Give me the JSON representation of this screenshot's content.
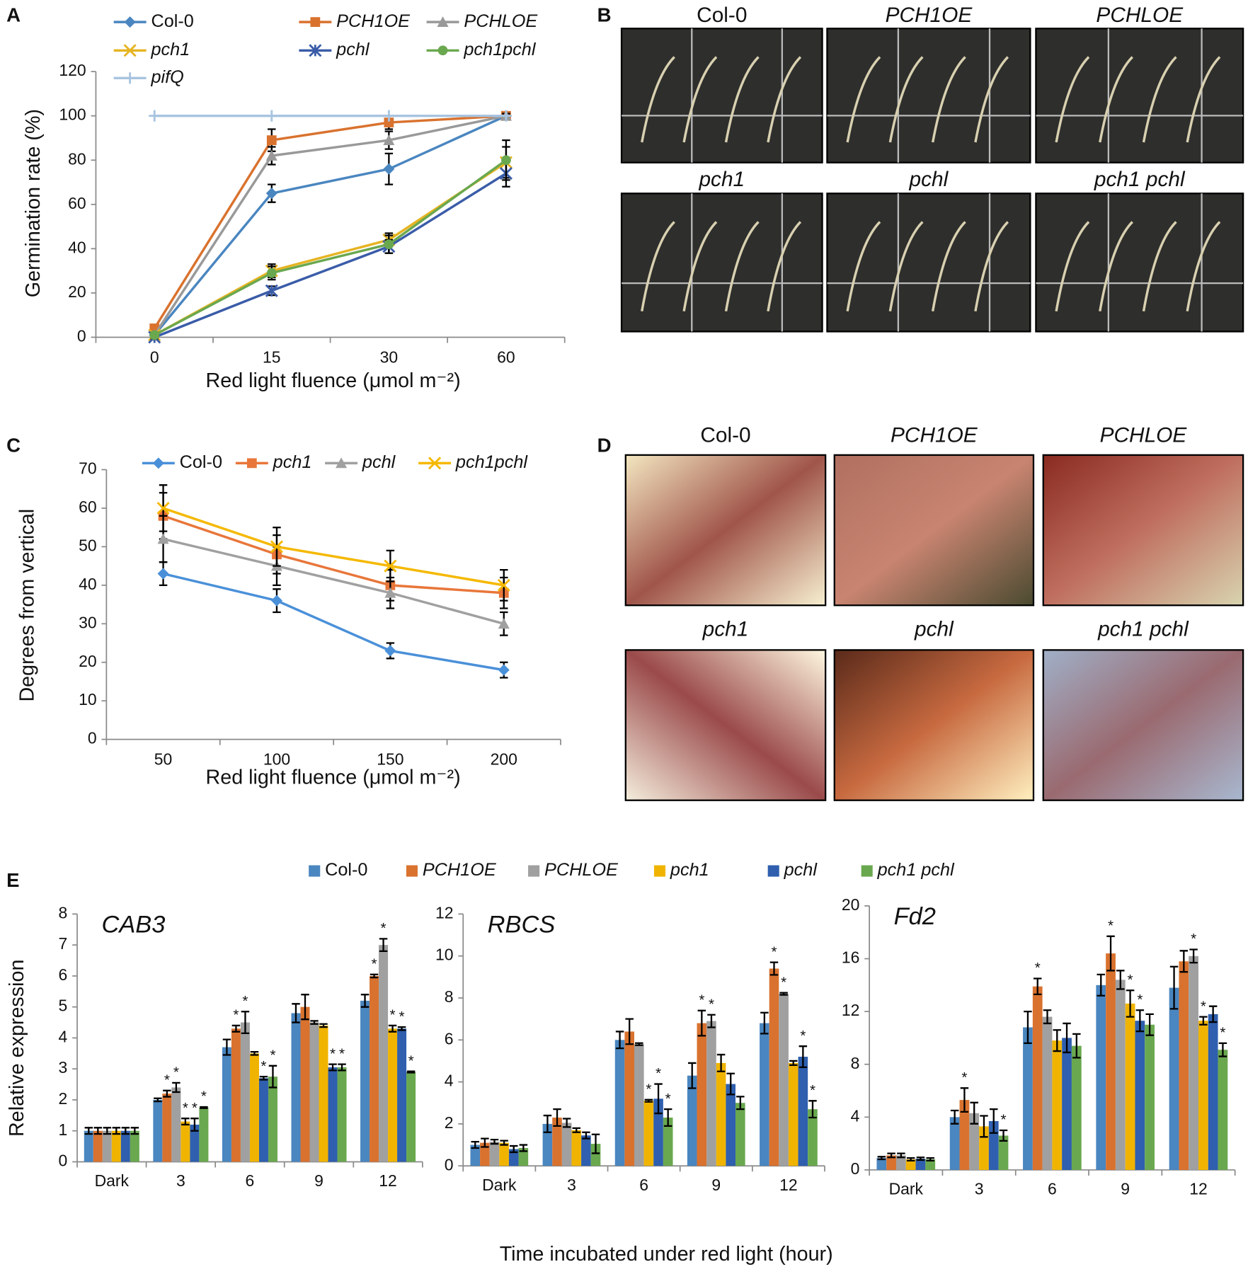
{
  "chart_data": [
    {
      "panel": "A",
      "type": "line",
      "xlabel": "Red light fluence (μmol m⁻²)",
      "ylabel": "Germination rate (%)",
      "categories": [
        "0",
        "15",
        "30",
        "60"
      ],
      "ylim": [
        0,
        120
      ],
      "yticks": [
        0,
        20,
        40,
        60,
        80,
        100,
        120
      ],
      "series": [
        {
          "name": "Col-0",
          "color": "#4a86c0",
          "marker": "diamond",
          "italic": false,
          "values": [
            1,
            65,
            76,
            100
          ],
          "errors": [
            1,
            4,
            7,
            1
          ]
        },
        {
          "name": "PCH1OE",
          "color": "#d9722e",
          "marker": "square",
          "italic": true,
          "values": [
            4,
            89,
            97,
            100
          ],
          "errors": [
            1,
            5,
            3,
            1
          ]
        },
        {
          "name": "PCHLOE",
          "color": "#999999",
          "marker": "triangle",
          "italic": true,
          "values": [
            1,
            82,
            89,
            100
          ],
          "errors": [
            1,
            4,
            4,
            1
          ]
        },
        {
          "name": "pch1",
          "color": "#e6b422",
          "marker": "x",
          "italic": true,
          "values": [
            1,
            30,
            44,
            79
          ],
          "errors": [
            1,
            3,
            3,
            7
          ]
        },
        {
          "name": "pchl",
          "color": "#3a5ca8",
          "marker": "star",
          "italic": true,
          "values": [
            0,
            21,
            41,
            74
          ],
          "errors": [
            1,
            2,
            3,
            6
          ]
        },
        {
          "name": "pch1pchl",
          "color": "#6aa84f",
          "marker": "circle",
          "italic": true,
          "values": [
            1,
            29,
            42,
            80
          ],
          "errors": [
            1,
            3,
            4,
            9
          ]
        },
        {
          "name": "pifQ",
          "color": "#a8c4e0",
          "marker": "plus",
          "italic": true,
          "values": [
            100,
            100,
            100,
            100
          ]
        }
      ]
    },
    {
      "panel": "C",
      "type": "line",
      "xlabel": "Red light fluence (μmol m⁻²)",
      "ylabel": "Degrees from vertical",
      "categories": [
        "50",
        "100",
        "150",
        "200"
      ],
      "ylim": [
        0,
        70
      ],
      "yticks": [
        0,
        10,
        20,
        30,
        40,
        50,
        60,
        70
      ],
      "series": [
        {
          "name": "Col-0",
          "color": "#4a90d9",
          "marker": "diamond",
          "italic": false,
          "values": [
            43,
            36,
            23,
            18
          ],
          "errors": [
            3,
            3,
            2,
            2
          ]
        },
        {
          "name": "pch1",
          "color": "#e8763a",
          "marker": "square",
          "italic": true,
          "values": [
            58,
            48,
            40,
            38
          ],
          "errors": [
            6,
            5,
            4,
            4
          ]
        },
        {
          "name": "pchl",
          "color": "#a0a0a0",
          "marker": "triangle",
          "italic": true,
          "values": [
            52,
            45,
            38,
            30
          ],
          "errors": [
            6,
            5,
            4,
            3
          ]
        },
        {
          "name": "pch1pchl",
          "color": "#f5b800",
          "marker": "x",
          "italic": true,
          "values": [
            60,
            50,
            45,
            40
          ],
          "errors": [
            6,
            5,
            4,
            4
          ]
        }
      ]
    },
    {
      "panel": "E",
      "type": "bar",
      "xlabel": "Time incubated under red light (hour)",
      "ylabel": "Relative expression",
      "categories": [
        "Dark",
        "3",
        "6",
        "9",
        "12"
      ],
      "series": [
        {
          "name": "Col-0",
          "color": "#4a86c0",
          "italic": false
        },
        {
          "name": "PCH1OE",
          "color": "#d9722e",
          "italic": true
        },
        {
          "name": "PCHLOE",
          "color": "#a0a0a0",
          "italic": true
        },
        {
          "name": "pch1",
          "color": "#f0b400",
          "italic": true
        },
        {
          "name": "pchl",
          "color": "#2f5fae",
          "italic": true
        },
        {
          "name": "pch1 pchl",
          "color": "#6aa84f",
          "italic": true
        }
      ],
      "subplots": [
        {
          "title": "CAB3",
          "ylim": [
            0,
            8
          ],
          "yticks": [
            0,
            1,
            2,
            3,
            4,
            5,
            6,
            7,
            8
          ],
          "series": [
            {
              "values": [
                1,
                2,
                3.7,
                4.8,
                5.2
              ],
              "errors": [
                0.1,
                0.05,
                0.25,
                0.3,
                0.2
              ],
              "labels": [
                null,
                null,
                null,
                null,
                null
              ]
            },
            {
              "values": [
                1,
                2.2,
                4.3,
                5,
                6
              ],
              "errors": [
                0.1,
                0.1,
                0.1,
                0.4,
                0.05
              ],
              "labels": [
                null,
                "*",
                "*",
                null,
                "*"
              ]
            },
            {
              "values": [
                1,
                2.4,
                4.5,
                4.5,
                7
              ],
              "errors": [
                0.1,
                0.15,
                0.35,
                0.05,
                0.2
              ],
              "labels": [
                null,
                "*",
                "*",
                null,
                "*"
              ]
            },
            {
              "values": [
                1,
                1.3,
                3.5,
                4.4,
                4.3
              ],
              "errors": [
                0.1,
                0.1,
                0.05,
                0.05,
                0.1
              ],
              "labels": [
                null,
                "*",
                null,
                null,
                "*"
              ]
            },
            {
              "values": [
                1,
                1.2,
                2.7,
                3.05,
                4.3
              ],
              "errors": [
                0.1,
                0.2,
                0.05,
                0.1,
                0.05
              ],
              "labels": [
                null,
                "*",
                "*",
                "*",
                "*"
              ]
            },
            {
              "values": [
                1,
                1.75,
                2.75,
                3.05,
                2.9
              ],
              "errors": [
                0.1,
                0.02,
                0.35,
                0.1,
                0.02
              ],
              "labels": [
                null,
                "*",
                "*",
                "*",
                "*"
              ]
            }
          ]
        },
        {
          "title": "RBCS",
          "ylim": [
            0,
            12
          ],
          "yticks": [
            0,
            2,
            4,
            6,
            8,
            10,
            12
          ],
          "series": [
            {
              "values": [
                1,
                2,
                6,
                4.3,
                6.8
              ],
              "errors": [
                0.15,
                0.4,
                0.4,
                0.6,
                0.5
              ],
              "labels": [
                null,
                null,
                null,
                null,
                null
              ]
            },
            {
              "values": [
                1.1,
                2.3,
                6.4,
                6.8,
                9.4
              ],
              "errors": [
                0.2,
                0.4,
                0.6,
                0.6,
                0.3
              ],
              "labels": [
                null,
                null,
                null,
                "*",
                "*"
              ]
            },
            {
              "values": [
                1.15,
                2.05,
                5.8,
                6.9,
                8.2
              ],
              "errors": [
                0.1,
                0.2,
                0.05,
                0.3,
                0.05
              ],
              "labels": [
                null,
                null,
                null,
                "*",
                "*"
              ]
            },
            {
              "values": [
                1.1,
                1.7,
                3.1,
                4.9,
                4.9
              ],
              "errors": [
                0.1,
                0.1,
                0.05,
                0.4,
                0.1
              ],
              "labels": [
                null,
                null,
                "*",
                null,
                null
              ]
            },
            {
              "values": [
                0.8,
                1.45,
                3.2,
                3.9,
                5.2
              ],
              "errors": [
                0.15,
                0.15,
                0.7,
                0.5,
                0.5
              ],
              "labels": [
                null,
                null,
                "*",
                null,
                "*"
              ]
            },
            {
              "values": [
                0.85,
                1.05,
                2.3,
                3,
                2.7
              ],
              "errors": [
                0.15,
                0.45,
                0.4,
                0.3,
                0.4
              ],
              "labels": [
                null,
                null,
                "*",
                null,
                "*"
              ]
            }
          ]
        },
        {
          "title": "Fd2",
          "ylim": [
            0,
            20
          ],
          "yticks": [
            0,
            4,
            8,
            12,
            16,
            20
          ],
          "series": [
            {
              "values": [
                0.9,
                4,
                10.8,
                14,
                13.8
              ],
              "errors": [
                0.1,
                0.5,
                1.2,
                0.8,
                1.6
              ],
              "labels": [
                null,
                null,
                null,
                null,
                null
              ]
            },
            {
              "values": [
                1.1,
                5.3,
                13.9,
                16.4,
                15.8
              ],
              "errors": [
                0.15,
                0.9,
                0.6,
                1.3,
                0.8
              ],
              "labels": [
                null,
                "*",
                "*",
                "*",
                null
              ]
            },
            {
              "values": [
                1.1,
                4.3,
                11.6,
                14.4,
                16.2
              ],
              "errors": [
                0.15,
                0.8,
                0.5,
                0.7,
                0.5
              ],
              "labels": [
                null,
                null,
                null,
                null,
                "*"
              ]
            },
            {
              "values": [
                0.8,
                3.3,
                9.8,
                12.6,
                11.3
              ],
              "errors": [
                0.1,
                0.8,
                0.8,
                1,
                0.3
              ],
              "labels": [
                null,
                null,
                null,
                "*",
                "*"
              ]
            },
            {
              "values": [
                0.85,
                3.7,
                10,
                11.3,
                11.8
              ],
              "errors": [
                0.1,
                0.9,
                1.1,
                0.8,
                0.6
              ],
              "labels": [
                null,
                null,
                null,
                "*",
                null
              ]
            },
            {
              "values": [
                0.8,
                2.6,
                9.4,
                11,
                9.1
              ],
              "errors": [
                0.1,
                0.4,
                0.9,
                0.8,
                0.5
              ],
              "labels": [
                null,
                "*",
                null,
                null,
                "*"
              ]
            }
          ]
        }
      ]
    }
  ],
  "photo_panels": [
    {
      "panel": "B",
      "images": [
        {
          "label": "Col-0",
          "italic": false
        },
        {
          "label": "PCH1OE",
          "italic": true
        },
        {
          "label": "PCHLOE",
          "italic": true
        },
        {
          "label": "pch1",
          "italic": true
        },
        {
          "label": "pchl",
          "italic": true
        },
        {
          "label": "pch1 pchl",
          "italic": true
        }
      ]
    },
    {
      "panel": "D",
      "images": [
        {
          "label": "Col-0",
          "italic": false
        },
        {
          "label": "PCH1OE",
          "italic": true
        },
        {
          "label": "PCHLOE",
          "italic": true
        },
        {
          "label": "pch1",
          "italic": true
        },
        {
          "label": "pchl",
          "italic": true
        },
        {
          "label": "pch1 pchl",
          "italic": true
        }
      ]
    }
  ]
}
